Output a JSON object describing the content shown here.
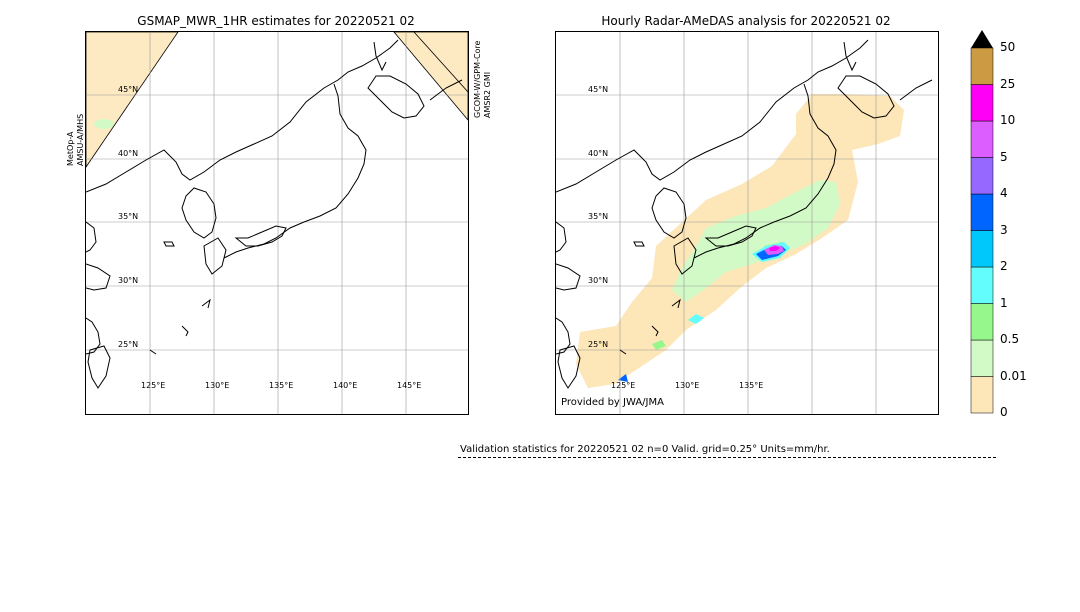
{
  "left_panel": {
    "title": "GSMAP_MWR_1HR estimates for 20220521 02",
    "left_sensor": [
      "MetOp-A",
      "AMSU-A/MHS"
    ],
    "right_sensor": [
      "GCOM-W/GPM-Core",
      "AMSR2  GMI"
    ]
  },
  "right_panel": {
    "title": "Hourly Radar-AMeDAS analysis for 20220521 02",
    "credit": "Provided by JWA/JMA"
  },
  "validation_text": "Validation statistics for 20220521 02  n=0 Valid. grid=0.25° Units=mm/hr.",
  "colors": {
    "swath_gap": "#fde9c2",
    "rain": [
      "#fde6b8",
      "#d2fac6",
      "#96f88c",
      "#63fdfd",
      "#00c8fb",
      "#0064ff",
      "#9668ff",
      "#dc5eff",
      "#ff00f6",
      "#cd9a44",
      "#000000"
    ]
  },
  "chart_data": [
    {
      "type": "heatmap",
      "title": "GSMAP_MWR_1HR estimates for 20220521 02",
      "lat_labels": [
        "45°N",
        "40°N",
        "35°N",
        "30°N",
        "25°N"
      ],
      "lon_labels": [
        "125°E",
        "130°E",
        "135°E",
        "140°E",
        "145°E"
      ],
      "lon_range": [
        120,
        150
      ],
      "lat_range": [
        20,
        50
      ],
      "grid": true,
      "notes": [
        "MetOp-A",
        "AMSU-A/MHS",
        "GCOM-W/GPM-Core",
        "AMSR2  GMI"
      ]
    },
    {
      "type": "heatmap",
      "title": "Hourly Radar-AMeDAS analysis for 20220521 02",
      "lat_labels": [
        "45°N",
        "40°N",
        "35°N",
        "30°N",
        "25°N"
      ],
      "lon_labels": [
        "125°E",
        "130°E",
        "135°E"
      ],
      "lon_range": [
        120,
        150
      ],
      "lat_range": [
        20,
        50
      ],
      "grid": true,
      "units": "mm/hr"
    }
  ],
  "colorbar": {
    "labels": [
      "0",
      "0.01",
      "0.5",
      "1",
      "2",
      "3",
      "4",
      "5",
      "10",
      "25",
      "50"
    ],
    "colors": [
      "#fde6b8",
      "#d2fac6",
      "#96f88c",
      "#63fdfd",
      "#00c8fb",
      "#0064ff",
      "#9668ff",
      "#dc5eff",
      "#ff00f6",
      "#cd9a44"
    ],
    "extend_color": "#000000"
  }
}
